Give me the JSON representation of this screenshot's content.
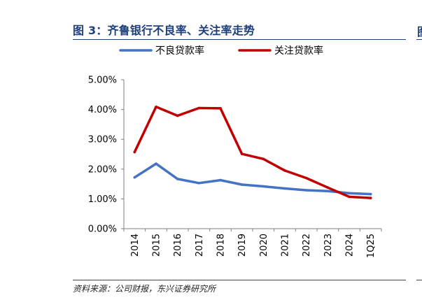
{
  "header": {
    "title": "图 3：齐鲁银行不良率、关注率走势",
    "edge_fragment": "图"
  },
  "footer": {
    "source": "资料来源：公司财报，东兴证券研究所"
  },
  "colors": {
    "title": "#1f3f7a",
    "npl_series": "#4472c4",
    "special_mention_series": "#c00000",
    "axis": "#808080"
  },
  "chart_data": {
    "type": "line",
    "categories": [
      "2014",
      "2015",
      "2016",
      "2017",
      "2018",
      "2019",
      "2020",
      "2021",
      "2022",
      "2023",
      "2024",
      "1Q25"
    ],
    "series": [
      {
        "name": "不良贷款率",
        "color": "#4472c4",
        "values": [
          1.72,
          2.18,
          1.67,
          1.53,
          1.63,
          1.48,
          1.42,
          1.35,
          1.29,
          1.26,
          1.19,
          1.16
        ]
      },
      {
        "name": "关注贷款率",
        "color": "#c00000",
        "values": [
          2.57,
          4.09,
          3.79,
          4.05,
          4.04,
          2.51,
          2.34,
          1.95,
          1.7,
          1.38,
          1.07,
          1.03
        ]
      }
    ],
    "yticks": [
      "0.00%",
      "1.00%",
      "2.00%",
      "3.00%",
      "4.00%",
      "5.00%"
    ],
    "ylim": [
      0,
      5
    ],
    "grid": false,
    "legend": "top"
  }
}
